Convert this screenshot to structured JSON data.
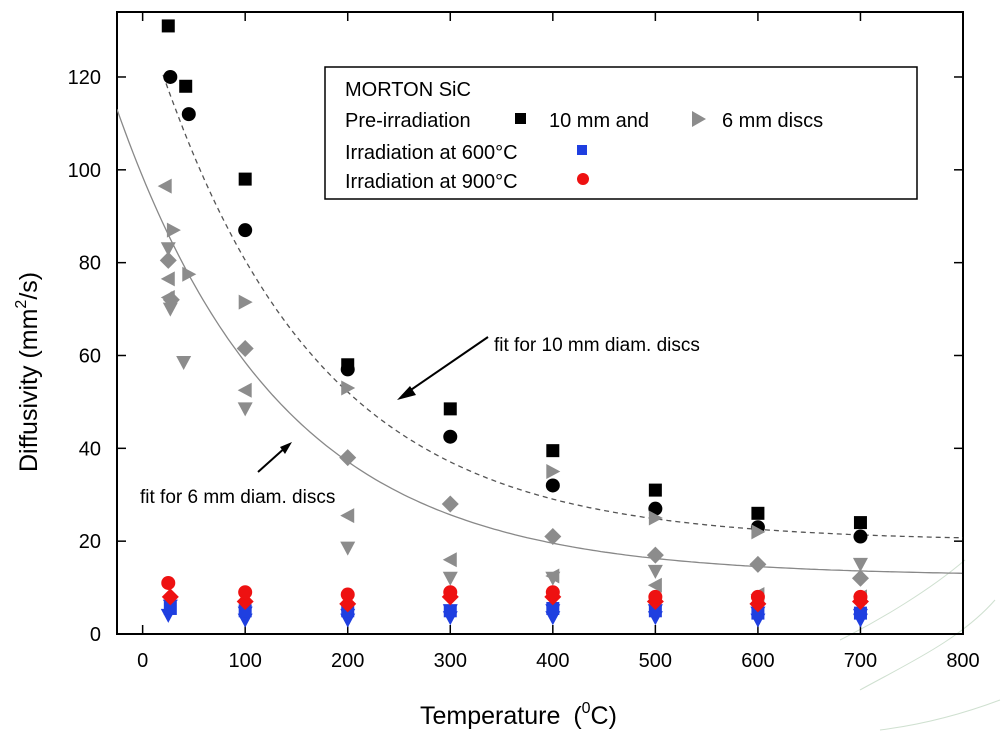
{
  "chart_data": {
    "type": "scatter",
    "xlabel": "Temperature",
    "xlabel_unit_base": "(",
    "xlabel_unit_sup": "0",
    "xlabel_unit_tail": "C)",
    "ylabel": "Diffusivity (mm",
    "ylabel_sup": "2",
    "ylabel_tail": "/s)",
    "xlim": [
      -25,
      800
    ],
    "ylim": [
      0,
      134
    ],
    "xticks": [
      0,
      100,
      200,
      300,
      400,
      500,
      600,
      700,
      800
    ],
    "xtick_labels": [
      "0",
      "100",
      "200",
      "300",
      "400",
      "500",
      "600",
      "700",
      "800"
    ],
    "yticks": [
      0,
      20,
      40,
      60,
      80,
      100,
      120
    ],
    "ytick_labels": [
      "0",
      "20",
      "40",
      "60",
      "80",
      "100",
      "120"
    ],
    "grid": false,
    "legend": {
      "placement": "top-right",
      "title": "MORTON SiC",
      "row_pre_a": "Pre-irradiation",
      "row_pre_b": "10 mm and",
      "row_pre_c": "6 mm discs",
      "row_600": "Irradiation at 600°C",
      "row_900": "Irradiation at 900°C"
    },
    "annotations": {
      "fit10": "fit for 10 mm diam. discs",
      "fit6": "fit for 6 mm diam. discs"
    },
    "colors": {
      "black": "#000000",
      "gray": "#8c8c8c",
      "blue": "#1f3fe0",
      "red": "#ee1111"
    },
    "series": [
      {
        "marker": "square",
        "color": "black",
        "points": [
          [
            25,
            131
          ],
          [
            42,
            118
          ],
          [
            100,
            98
          ],
          [
            200,
            58
          ],
          [
            300,
            48.5
          ],
          [
            400,
            39.5
          ],
          [
            500,
            31
          ],
          [
            600,
            26
          ],
          [
            700,
            24
          ]
        ]
      },
      {
        "marker": "circle",
        "color": "black",
        "points": [
          [
            27,
            120
          ],
          [
            45,
            112
          ],
          [
            100,
            87
          ],
          [
            200,
            57
          ],
          [
            300,
            42.5
          ],
          [
            400,
            32
          ],
          [
            500,
            27
          ],
          [
            600,
            23
          ],
          [
            700,
            21
          ]
        ]
      },
      {
        "marker": "tri-right",
        "color": "gray",
        "points": [
          [
            30,
            87
          ],
          [
            45,
            77.5
          ],
          [
            100,
            71.5
          ],
          [
            200,
            53
          ],
          [
            400,
            35
          ],
          [
            500,
            25
          ],
          [
            600,
            22
          ]
        ]
      },
      {
        "marker": "tri-left",
        "color": "gray",
        "points": [
          [
            22,
            96.5
          ],
          [
            25,
            76.5
          ],
          [
            25,
            72.5
          ],
          [
            100,
            52.5
          ],
          [
            200,
            25.5
          ],
          [
            300,
            16
          ],
          [
            400,
            12.5
          ],
          [
            500,
            10.5
          ],
          [
            600,
            8.5
          ],
          [
            700,
            8
          ]
        ]
      },
      {
        "marker": "tri-down",
        "color": "gray",
        "points": [
          [
            25,
            83
          ],
          [
            27,
            70
          ],
          [
            40,
            58.5
          ],
          [
            100,
            48.5
          ],
          [
            200,
            18.5
          ],
          [
            300,
            12
          ],
          [
            400,
            12
          ],
          [
            500,
            13.5
          ],
          [
            700,
            15
          ]
        ]
      },
      {
        "marker": "diamond",
        "color": "gray",
        "points": [
          [
            25,
            80.5
          ],
          [
            28,
            72
          ],
          [
            100,
            61.5
          ],
          [
            200,
            38
          ],
          [
            300,
            28
          ],
          [
            400,
            21
          ],
          [
            500,
            17
          ],
          [
            600,
            15
          ],
          [
            700,
            12
          ]
        ]
      },
      {
        "marker": "tri-down",
        "color": "blue",
        "points": [
          [
            25,
            4
          ],
          [
            27,
            6
          ],
          [
            100,
            3
          ],
          [
            100,
            4.5
          ],
          [
            200,
            3
          ],
          [
            200,
            4
          ],
          [
            300,
            3.5
          ],
          [
            300,
            5
          ],
          [
            400,
            3.5
          ],
          [
            400,
            5
          ],
          [
            500,
            3.5
          ],
          [
            500,
            5
          ],
          [
            600,
            3
          ],
          [
            600,
            4.5
          ],
          [
            700,
            3
          ],
          [
            700,
            4
          ]
        ]
      },
      {
        "marker": "square",
        "color": "blue",
        "points": [
          [
            27,
            5.5
          ],
          [
            100,
            5
          ],
          [
            200,
            5
          ],
          [
            300,
            5
          ],
          [
            400,
            5.5
          ],
          [
            500,
            5
          ],
          [
            600,
            4.5
          ],
          [
            700,
            4.5
          ]
        ]
      },
      {
        "marker": "diamond",
        "color": "red",
        "points": [
          [
            27,
            8
          ],
          [
            100,
            7
          ],
          [
            200,
            6.5
          ],
          [
            300,
            8
          ],
          [
            400,
            8
          ],
          [
            500,
            7
          ],
          [
            600,
            6.5
          ],
          [
            700,
            7
          ]
        ]
      },
      {
        "marker": "circle",
        "color": "red",
        "points": [
          [
            25,
            11
          ],
          [
            100,
            9
          ],
          [
            200,
            8.5
          ],
          [
            300,
            9
          ],
          [
            400,
            9
          ],
          [
            500,
            8
          ],
          [
            600,
            8
          ],
          [
            700,
            8
          ]
        ]
      }
    ],
    "fits": [
      {
        "name_ref": "fit10",
        "style": "dashed",
        "color": "#555555",
        "form": "a+b*exp(-x/t)",
        "a": 20,
        "b": 114,
        "t": 158,
        "from": 20,
        "to": 800
      },
      {
        "name_ref": "fit6",
        "style": "solid",
        "color": "#888888",
        "form": "a+b*exp(-x/t)",
        "a": 12.5,
        "b": 86,
        "t": 160,
        "from": -25,
        "to": 800
      }
    ]
  }
}
